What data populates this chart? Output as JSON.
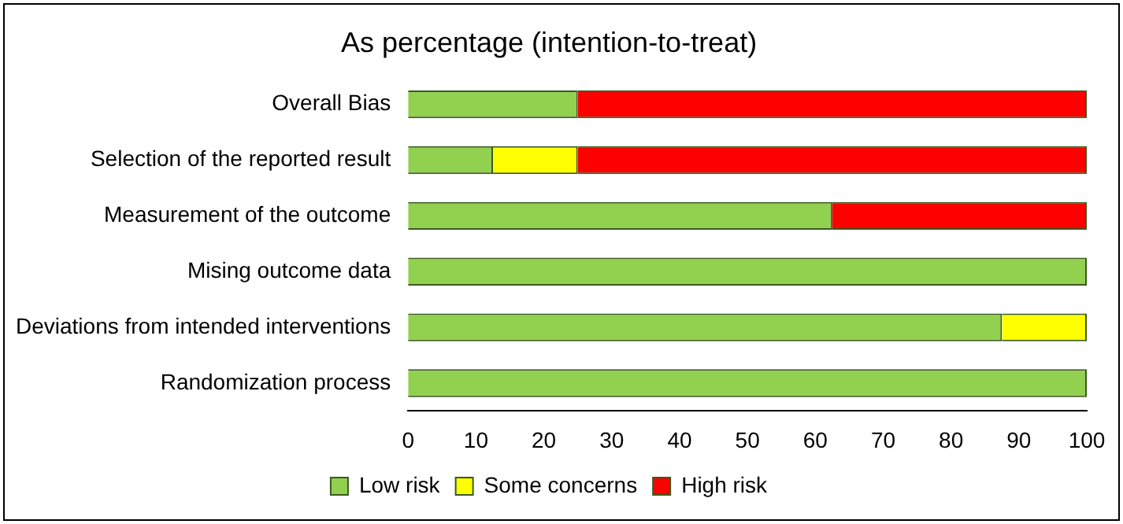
{
  "chart_data": {
    "type": "bar",
    "orientation": "horizontal",
    "stacked": true,
    "title": "As percentage (intention-to-treat)",
    "categories": [
      "Overall Bias",
      "Selection of the reported result",
      "Measurement of the outcome",
      "Mising outcome data",
      "Deviations from intended interventions",
      "Randomization process"
    ],
    "series": [
      {
        "name": "Low risk",
        "color": "#92d050",
        "values": [
          25,
          12.5,
          62.5,
          100,
          87.5,
          100
        ]
      },
      {
        "name": "Some concerns",
        "color": "#ffff00",
        "values": [
          0,
          12.5,
          0,
          0,
          12.5,
          0
        ]
      },
      {
        "name": "High risk",
        "color": "#ff0000",
        "values": [
          75,
          75,
          37.5,
          0,
          0,
          0
        ]
      }
    ],
    "xlim": [
      0,
      100
    ],
    "xticks": [
      0,
      10,
      20,
      30,
      40,
      50,
      60,
      70,
      80,
      90,
      100
    ],
    "grid": false,
    "legend": "bottom"
  }
}
